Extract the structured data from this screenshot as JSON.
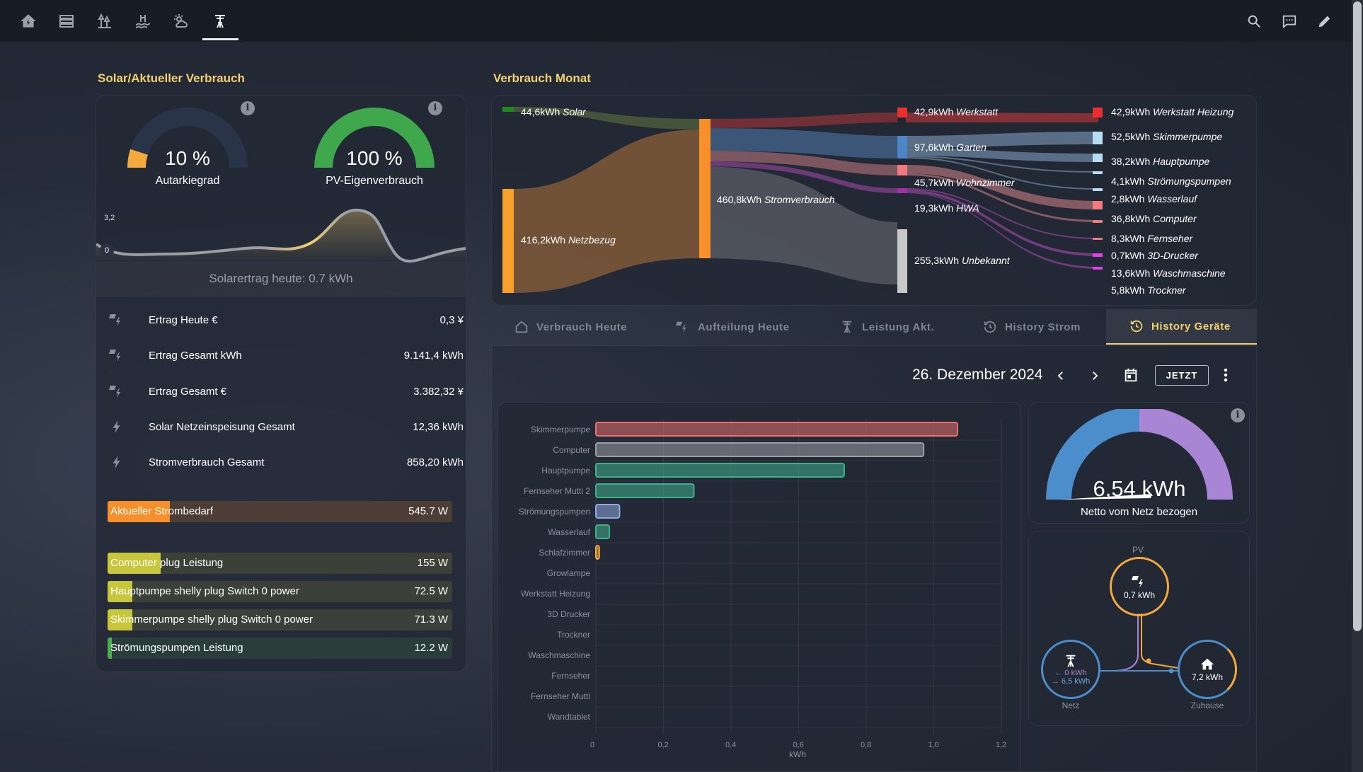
{
  "nav": {
    "icons": [
      "home-solar-icon",
      "server-icon",
      "garden-icon",
      "pool-icon",
      "weather-icon",
      "power-pole-icon"
    ],
    "actions": [
      "search-icon",
      "chat-icon",
      "pencil-icon"
    ]
  },
  "left": {
    "title": "Solar/Aktueller Verbrauch",
    "gauge_autarkie": {
      "value": "10 %",
      "label": "Autarkiegrad",
      "fraction": 0.1,
      "color": "#f4a93d"
    },
    "gauge_pv": {
      "value": "100 %",
      "label": "PV-Eigenverbrauch",
      "fraction": 1.0,
      "color": "#3fa84d"
    },
    "sparkline": {
      "max_label": "3,2",
      "min_label": "0",
      "footer": "Solarertrag heute: 0.7 kWh"
    },
    "entities": [
      {
        "name": "Ertrag Heute €",
        "value": "0,3 ¥",
        "icon": "solar-power-icon"
      },
      {
        "name": "Ertrag Gesamt kWh",
        "value": "9.141,4 kWh",
        "icon": "solar-power-icon"
      },
      {
        "name": "Ertrag Gesamt €",
        "value": "3.382,32 ¥",
        "icon": "solar-power-icon"
      },
      {
        "name": "Solar Netzeinspeisung Gesamt",
        "value": "12,36 kWh",
        "icon": "flash-icon"
      },
      {
        "name": "Stromverbrauch Gesamt",
        "value": "858,20 kWh",
        "icon": "flash-icon"
      }
    ],
    "demand": {
      "name": "Aktueller Strombedarf",
      "value": "545.7 W",
      "fraction": 0.18,
      "color": "#f7902b"
    },
    "plugs": [
      {
        "name": "Computer plug Leistung",
        "value": "155 W",
        "fraction": 0.155,
        "color": "#c8c63a"
      },
      {
        "name": "Hauptpumpe shelly plug Switch 0 power",
        "value": "72.5 W",
        "fraction": 0.072,
        "color": "#c8c63a"
      },
      {
        "name": "Skimmerpumpe shelly plug Switch 0 power",
        "value": "71.3 W",
        "fraction": 0.071,
        "color": "#c8c63a"
      },
      {
        "name": "Strömungspumpen Leistung",
        "value": "12.2 W",
        "fraction": 0.012,
        "color": "#4cae4f"
      }
    ]
  },
  "sankey": {
    "title": "Verbrauch Monat",
    "solar": {
      "value": "44,6kWh",
      "name": "Solar"
    },
    "grid": {
      "value": "416,2kWh",
      "name": "Netzbezug"
    },
    "total": {
      "value": "460,8kWh",
      "name": "Stromverbrauch"
    },
    "mid": [
      {
        "value": "42,9kWh",
        "name": "Werkstatt"
      },
      {
        "value": "97,6kWh",
        "name": "Garten"
      },
      {
        "value": "45,7kWh",
        "name": "Wohnzimmer"
      },
      {
        "value": "19,3kWh",
        "name": "HWA"
      },
      {
        "value": "255,3kWh",
        "name": "Unbekannt"
      }
    ],
    "right": [
      {
        "value": "42,9kWh",
        "name": "Werkstatt Heizung"
      },
      {
        "value": "52,5kWh",
        "name": "Skimmerpumpe"
      },
      {
        "value": "38,2kWh",
        "name": "Hauptpumpe"
      },
      {
        "value": "4,1kWh",
        "name": "Strömungspumpen"
      },
      {
        "value": "2,8kWh",
        "name": "Wasserlauf"
      },
      {
        "value": "36,8kWh",
        "name": "Computer"
      },
      {
        "value": "8,3kWh",
        "name": "Fernseher"
      },
      {
        "value": "0,7kWh",
        "name": "3D-Drucker"
      },
      {
        "value": "13,6kWh",
        "name": "Waschmaschine"
      },
      {
        "value": "5,8kWh",
        "name": "Trockner"
      }
    ]
  },
  "tabs": [
    {
      "label": "Verbrauch Heute",
      "icon": "home-icon"
    },
    {
      "label": "Aufteilung Heute",
      "icon": "solar-power-icon"
    },
    {
      "label": "Leistung Akt.",
      "icon": "power-pole-icon"
    },
    {
      "label": "History Strom",
      "icon": "history-icon"
    },
    {
      "label": "History Geräte",
      "icon": "history-icon"
    }
  ],
  "date_nav": {
    "date": "26. Dezember 2024",
    "now_label": "JETZT"
  },
  "chart_data": {
    "type": "bar",
    "orientation": "horizontal",
    "categories": [
      "Skimmerpumpe",
      "Computer",
      "Hauptpumpe",
      "Fernseher Mutti 2",
      "Strömungspumpen",
      "Wasserlauf",
      "Schlafzimmer",
      "Growlampe",
      "Werkstatt Heizung",
      "3D Drucker",
      "Trockner",
      "Waschmaschine",
      "Fernseher",
      "Fernseher Mutti",
      "Wandtablet"
    ],
    "values": [
      1.07,
      0.97,
      0.735,
      0.29,
      0.07,
      0.04,
      0.01,
      0,
      0,
      0,
      0,
      0,
      0,
      0,
      0
    ],
    "colors": [
      "#e8706e",
      "#9a9ea6",
      "#3fb08c",
      "#3fb08c",
      "#8fa8e0",
      "#3fb08c",
      "#f4a93d",
      "#888",
      "#888",
      "#888",
      "#888",
      "#888",
      "#888",
      "#888",
      "#888"
    ],
    "xlabel": "kWh",
    "xlim": [
      0,
      1.2
    ],
    "xticks": [
      "0",
      "0,2",
      "0,4",
      "0,6",
      "0,8",
      "1,0",
      "1,2"
    ]
  },
  "net_gauge": {
    "value": "6,54 kWh",
    "label": "Netto vom Netz bezogen"
  },
  "power_flow": {
    "pv": {
      "label": "PV",
      "value": "0,7 kWh"
    },
    "grid": {
      "label": "Netz",
      "in": "← 0 kWh",
      "out": "→ 6,5 kWh"
    },
    "home": {
      "label": "Zuhause",
      "value": "7,2 kWh"
    }
  }
}
